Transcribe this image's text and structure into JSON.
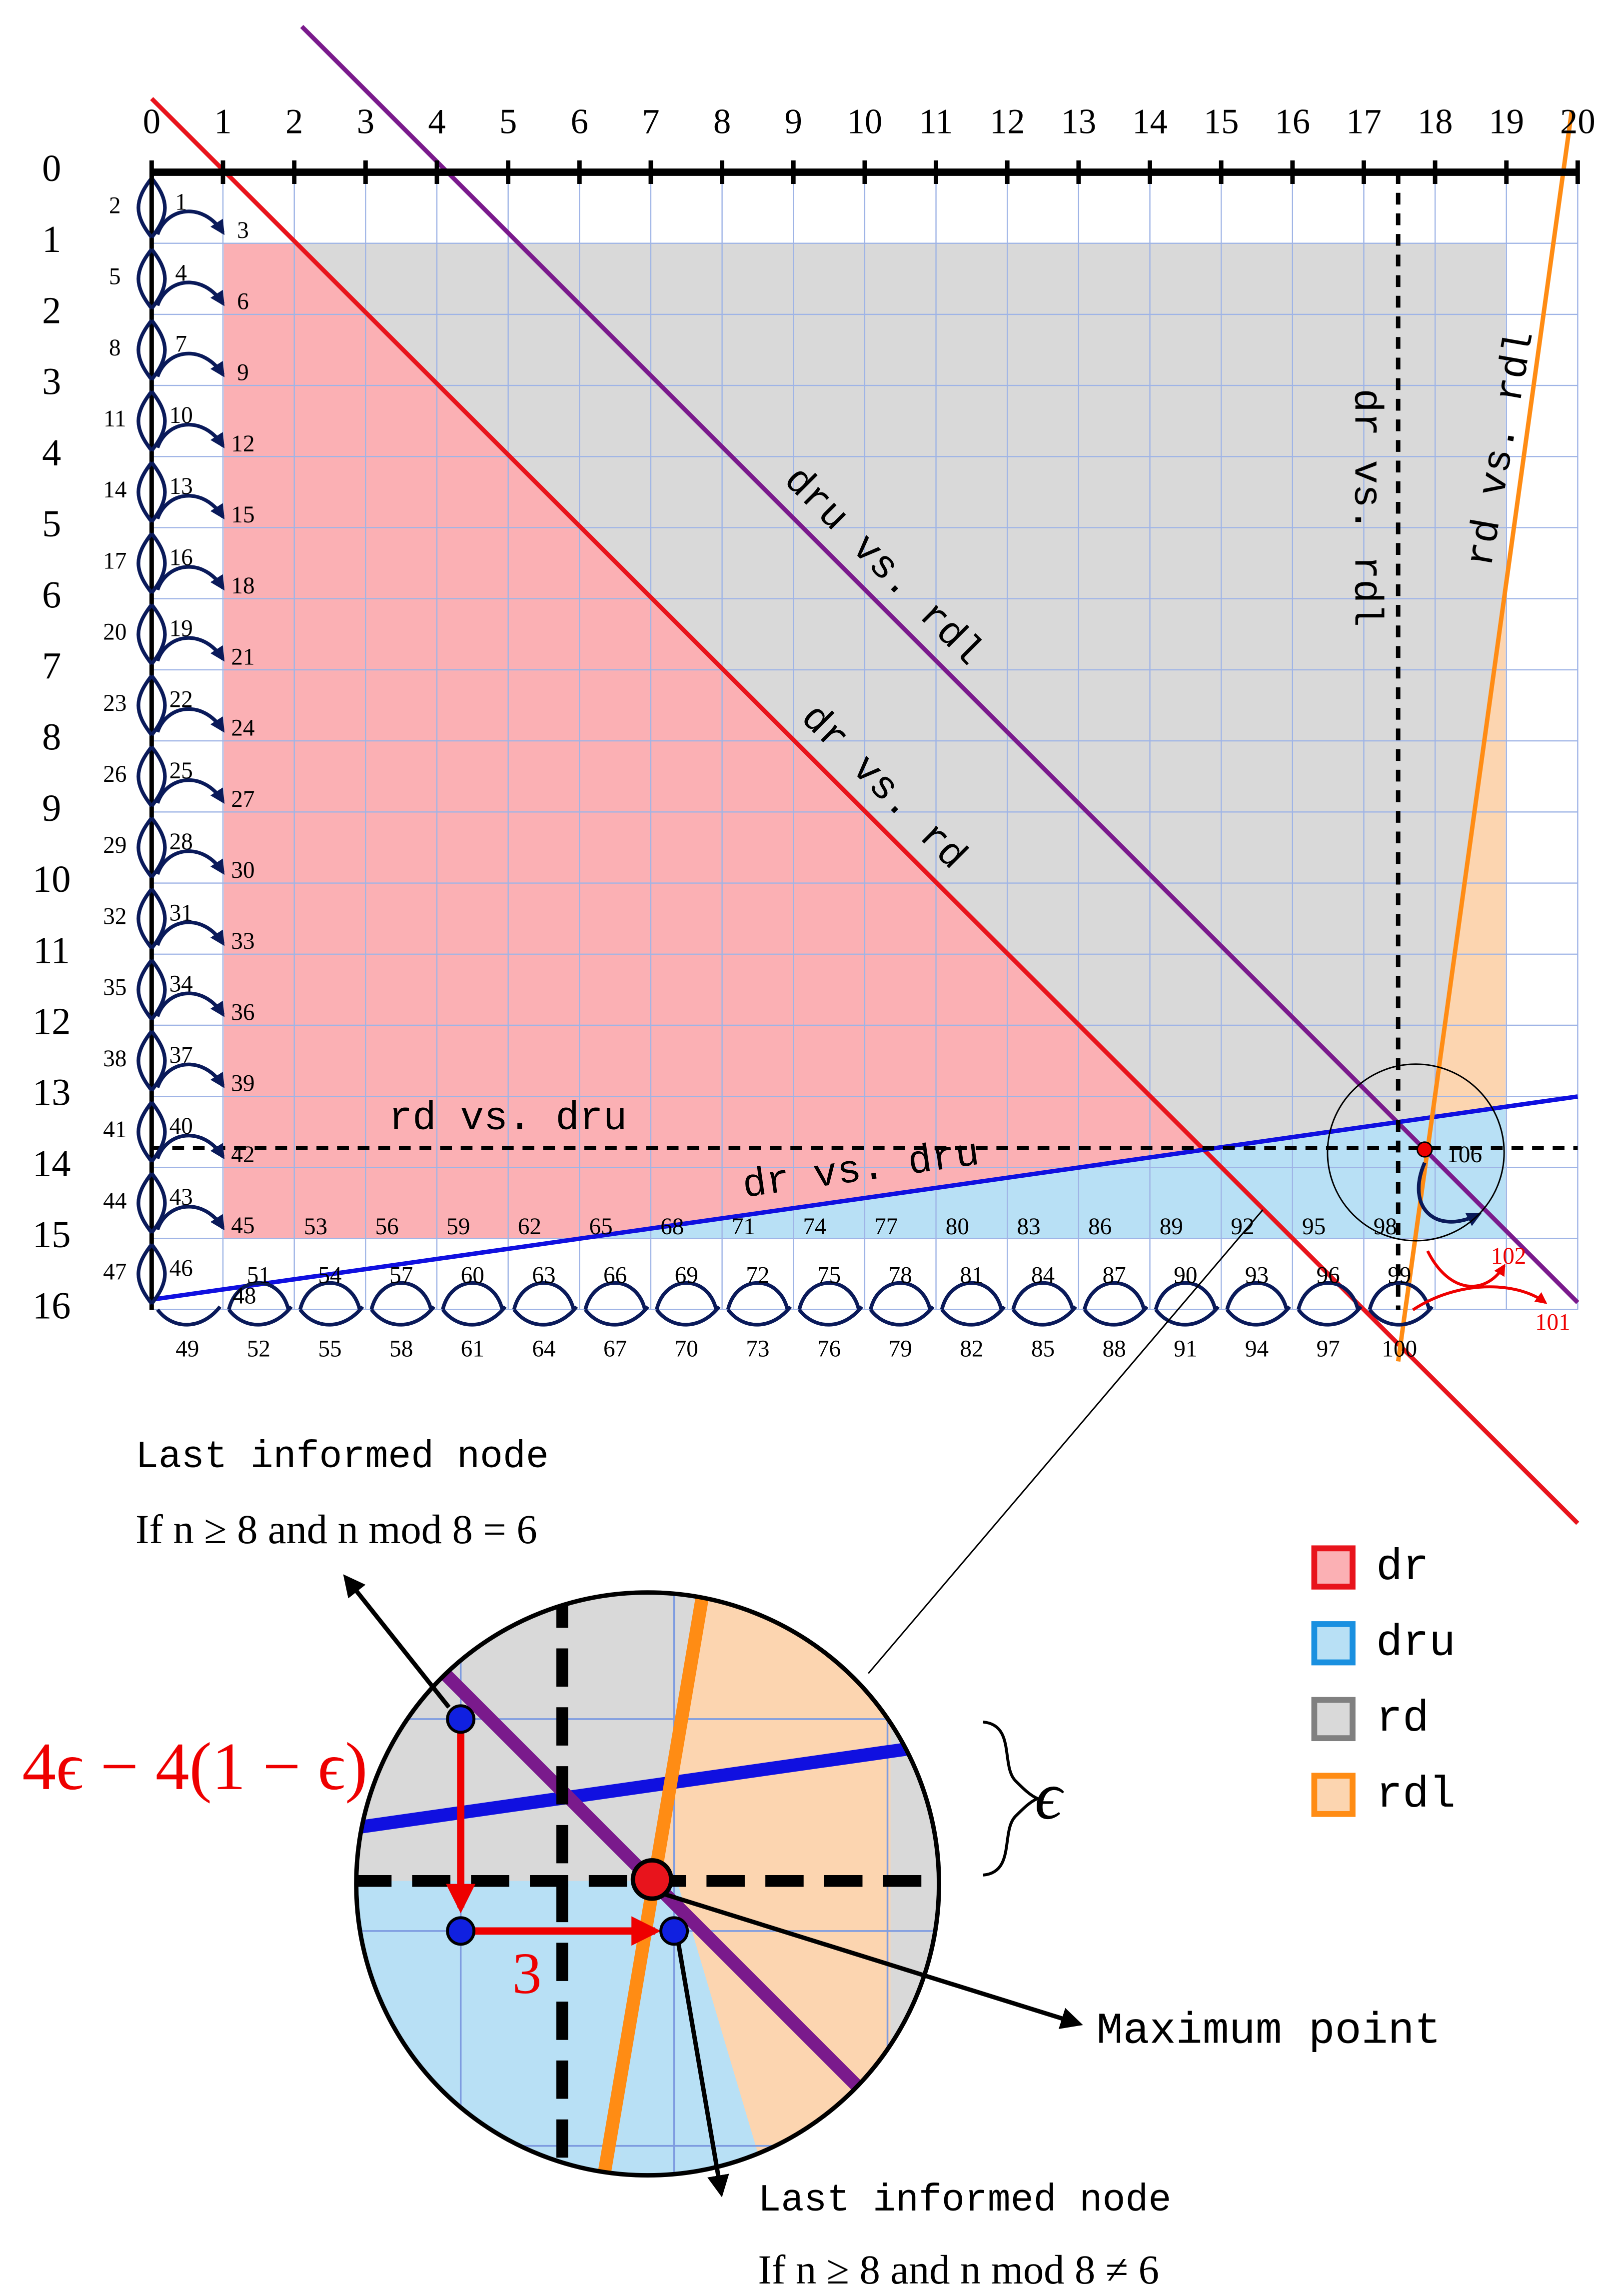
{
  "axes": {
    "columns": [
      "0",
      "1",
      "2",
      "3",
      "4",
      "5",
      "6",
      "7",
      "8",
      "9",
      "10",
      "11",
      "12",
      "13",
      "14",
      "15",
      "16",
      "17",
      "18",
      "19",
      "20"
    ],
    "rows": [
      "0",
      "1",
      "2",
      "3",
      "4",
      "5",
      "6",
      "7",
      "8",
      "9",
      "10",
      "11",
      "12",
      "13",
      "14",
      "15",
      "16"
    ]
  },
  "nodes": {
    "left": [
      "2",
      "5",
      "8",
      "11",
      "14",
      "17",
      "20",
      "23",
      "26",
      "29",
      "32",
      "35",
      "38",
      "41",
      "44",
      "47"
    ],
    "right": [
      "1",
      "4",
      "7",
      "10",
      "13",
      "16",
      "19",
      "22",
      "25",
      "28",
      "31",
      "34",
      "37",
      "40",
      "43",
      "46"
    ],
    "inner": [
      "3",
      "6",
      "9",
      "12",
      "15",
      "18",
      "21",
      "24",
      "27",
      "30",
      "33",
      "36",
      "39",
      "42",
      "45"
    ],
    "corner": "48",
    "bottom": [
      "49",
      "52",
      "55",
      "58",
      "61",
      "64",
      "67",
      "70",
      "73",
      "76",
      "79",
      "82",
      "85",
      "88",
      "91",
      "94",
      "97",
      "100"
    ],
    "middle": [
      "51",
      "54",
      "57",
      "60",
      "63",
      "66",
      "69",
      "72",
      "75",
      "78",
      "81",
      "84",
      "87",
      "90",
      "93",
      "96",
      "99"
    ],
    "top": [
      "53",
      "56",
      "59",
      "62",
      "65",
      "68",
      "71",
      "74",
      "77",
      "80",
      "83",
      "86",
      "89",
      "92",
      "95",
      "98"
    ],
    "red": [
      "101",
      "102"
    ],
    "max": "106"
  },
  "line_labels": {
    "dru_rdl": "dru vs. rdl",
    "dr_rd": "dr vs. rd",
    "rd_dru": "rd vs. dru",
    "dr_dru": "dr vs. dru",
    "dr_rdl": "dr vs. rdl",
    "rd_rdl": "rd vs. rdl"
  },
  "legend": [
    "dr",
    "dru",
    "rd",
    "rdl"
  ],
  "zoom": {
    "top_title": "Last informed node",
    "top_condition": "If n ≥ 8 and n mod 8 = 6",
    "vertical_gap": "4ϵ − 4(1 − ϵ)",
    "epsilon": "ϵ",
    "horizontal_gap": "3",
    "max_label": "Maximum point",
    "bottom_title": "Last informed node",
    "bottom_condition": "If n ≥ 8 and n mod 8 ≠ 6"
  }
}
